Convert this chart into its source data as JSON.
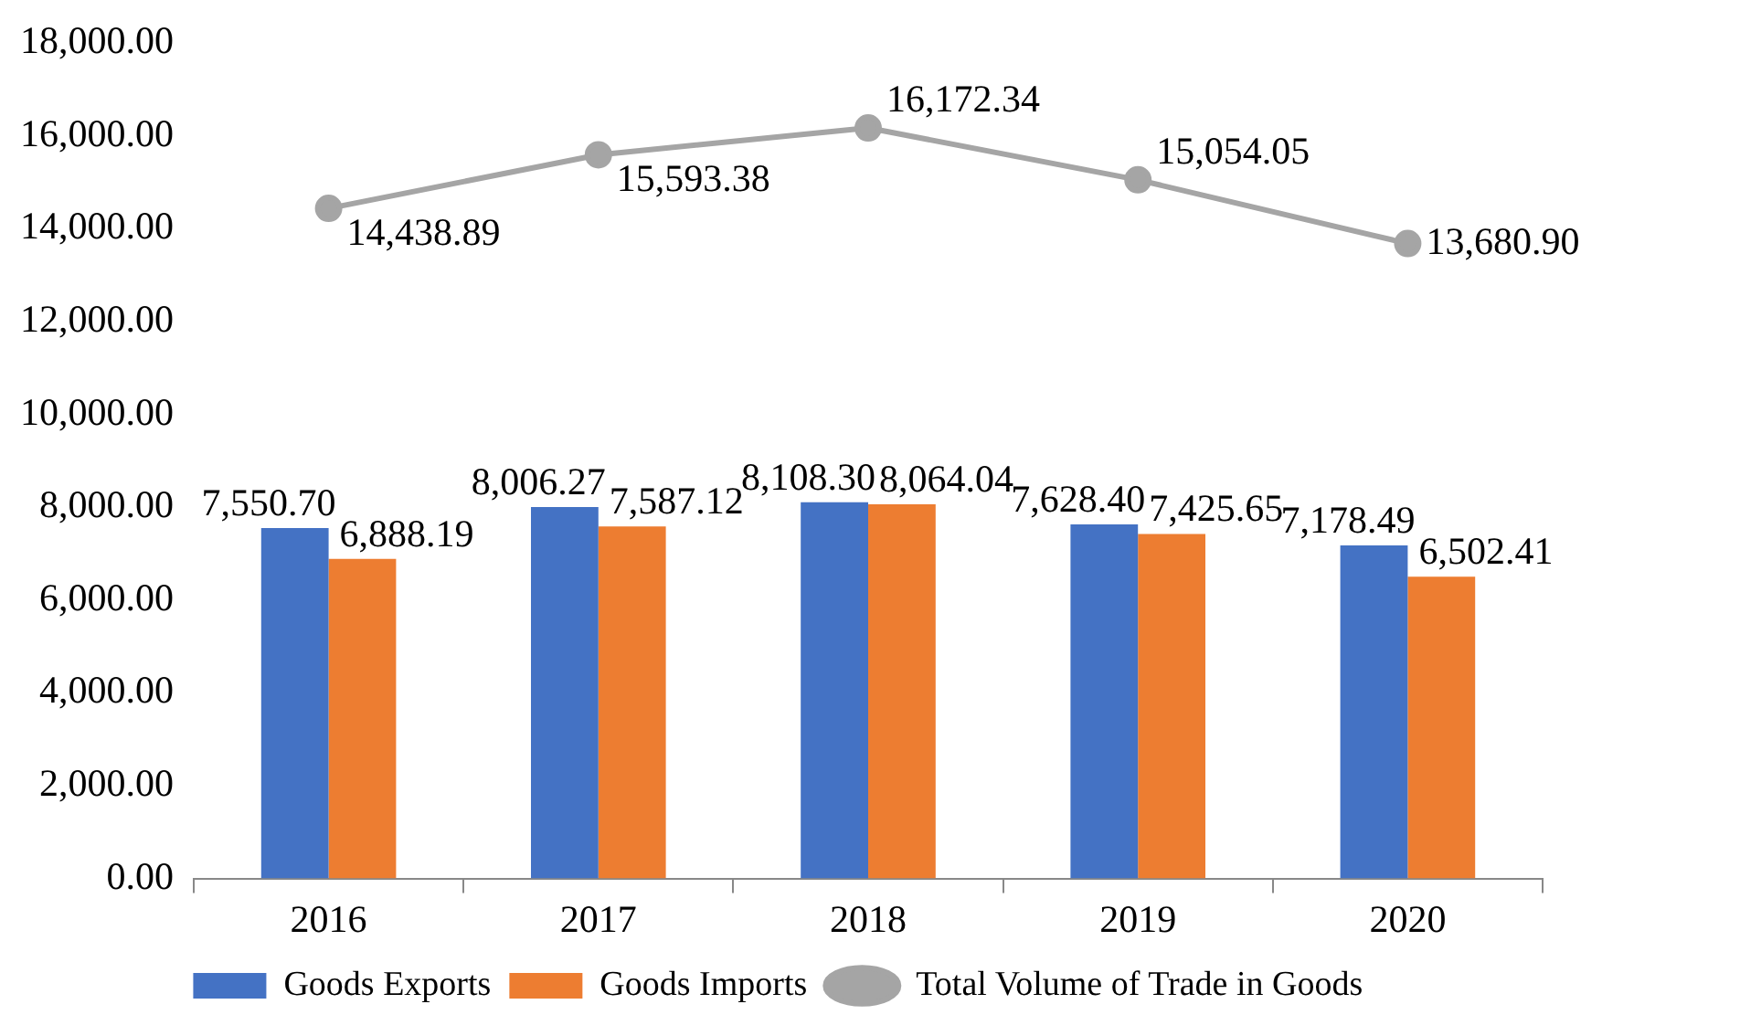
{
  "chart_data": {
    "type": "bar",
    "categories": [
      "2016",
      "2017",
      "2018",
      "2019",
      "2020"
    ],
    "series": [
      {
        "name": "Goods Exports",
        "color": "#4472c4",
        "values": [
          7550.7,
          8006.27,
          8108.3,
          7628.4,
          7178.49
        ],
        "value_labels": [
          "7,550.70",
          "8,006.27",
          "8,108.30",
          "7,628.40",
          "7,178.49"
        ]
      },
      {
        "name": "Goods Imports",
        "color": "#ed7d31",
        "values": [
          6888.19,
          7587.12,
          8064.04,
          7425.65,
          6502.41
        ],
        "value_labels": [
          "6,888.19",
          "7,587.12",
          "8,064.04",
          "7,425.65",
          "6,502.41"
        ]
      },
      {
        "name": "Total Volume of Trade in Goods",
        "type": "line",
        "color": "#a5a5a5",
        "marker": "circle",
        "values": [
          14438.89,
          15593.38,
          16172.34,
          15054.05,
          13680.9
        ],
        "value_labels": [
          "14,438.89",
          "15,593.38",
          "16,172.34",
          "15,054.05",
          "13,680.90"
        ]
      }
    ],
    "ylim": [
      0,
      18000
    ],
    "yticks": [
      {
        "value": 0,
        "label": "0.00"
      },
      {
        "value": 2000,
        "label": "2,000.00"
      },
      {
        "value": 4000,
        "label": "4,000.00"
      },
      {
        "value": 6000,
        "label": "6,000.00"
      },
      {
        "value": 8000,
        "label": "8,000.00"
      },
      {
        "value": 10000,
        "label": "10,000.00"
      },
      {
        "value": 12000,
        "label": "12,000.00"
      },
      {
        "value": 14000,
        "label": "14,000.00"
      },
      {
        "value": 16000,
        "label": "16,000.00"
      },
      {
        "value": 18000,
        "label": "18,000.00"
      }
    ],
    "grid": false,
    "legend": "bottom"
  }
}
